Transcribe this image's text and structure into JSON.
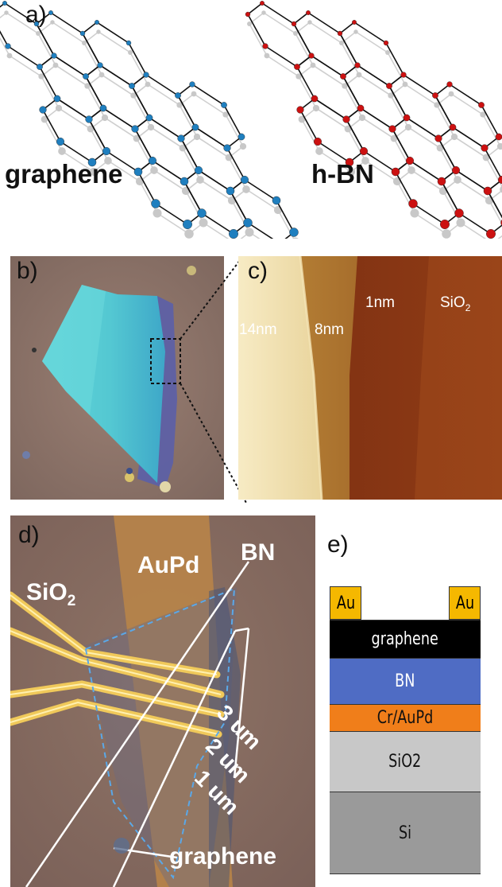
{
  "panels": {
    "a": {
      "label": "a)",
      "graphene_label": "graphene",
      "hbn_label": "h-BN",
      "colors": {
        "graphene_atom": "#1f7fbf",
        "boron_atom": "#cc1111",
        "nitrogen_atom": "#111111",
        "shadow": "#c8c8c8"
      }
    },
    "b": {
      "label": "b)"
    },
    "c": {
      "label": "c)",
      "thickness_labels": [
        "14nm",
        "8nm",
        "1nm",
        "SiO"
      ]
    },
    "d": {
      "label": "d)",
      "sio2_label": "SiO",
      "sio2_subscript": "2",
      "aupd_label": "AuPd",
      "bn_label": "BN",
      "distances": [
        "3 um",
        "2 um",
        "1 um"
      ],
      "graphene_label": "graphene"
    },
    "e": {
      "label": "e)",
      "contact_left": "Au",
      "contact_right": "Au",
      "layers": [
        {
          "name": "graphene",
          "color": "#000000",
          "text_color": "#ffffff"
        },
        {
          "name": "BN",
          "color": "#4f6cc4",
          "text_color": "#ffffff"
        },
        {
          "name": "Cr/AuPd",
          "color": "#f07e1a",
          "text_color": "#111111"
        },
        {
          "name": "SiO2",
          "color": "#c8c8c8",
          "text_color": "#111111"
        },
        {
          "name": "Si",
          "color": "#9a9a9a",
          "text_color": "#111111"
        }
      ],
      "contact_color": "#f5b800"
    }
  }
}
